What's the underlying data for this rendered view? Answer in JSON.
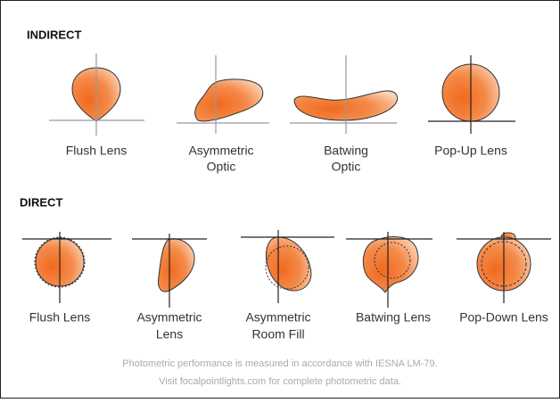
{
  "indirect": {
    "heading": "INDIRECT",
    "items": [
      {
        "lines": [
          "Flush Lens"
        ]
      },
      {
        "lines": [
          "Asymmetric",
          "Optic"
        ]
      },
      {
        "lines": [
          "Batwing",
          "Optic"
        ]
      },
      {
        "lines": [
          "Pop-Up Lens"
        ]
      }
    ]
  },
  "direct": {
    "heading": "DIRECT",
    "items": [
      {
        "lines": [
          "Flush Lens"
        ]
      },
      {
        "lines": [
          "Asymmetric",
          "Lens"
        ]
      },
      {
        "lines": [
          "Asymmetric",
          "Room Fill"
        ]
      },
      {
        "lines": [
          "Batwing Lens"
        ]
      },
      {
        "lines": [
          "Pop-Down Lens"
        ]
      }
    ]
  },
  "footer": [
    "Photometric performance is measured in accordance with IESNA LM-79.",
    "Visit focalpointlights.com for complete photometric data."
  ]
}
